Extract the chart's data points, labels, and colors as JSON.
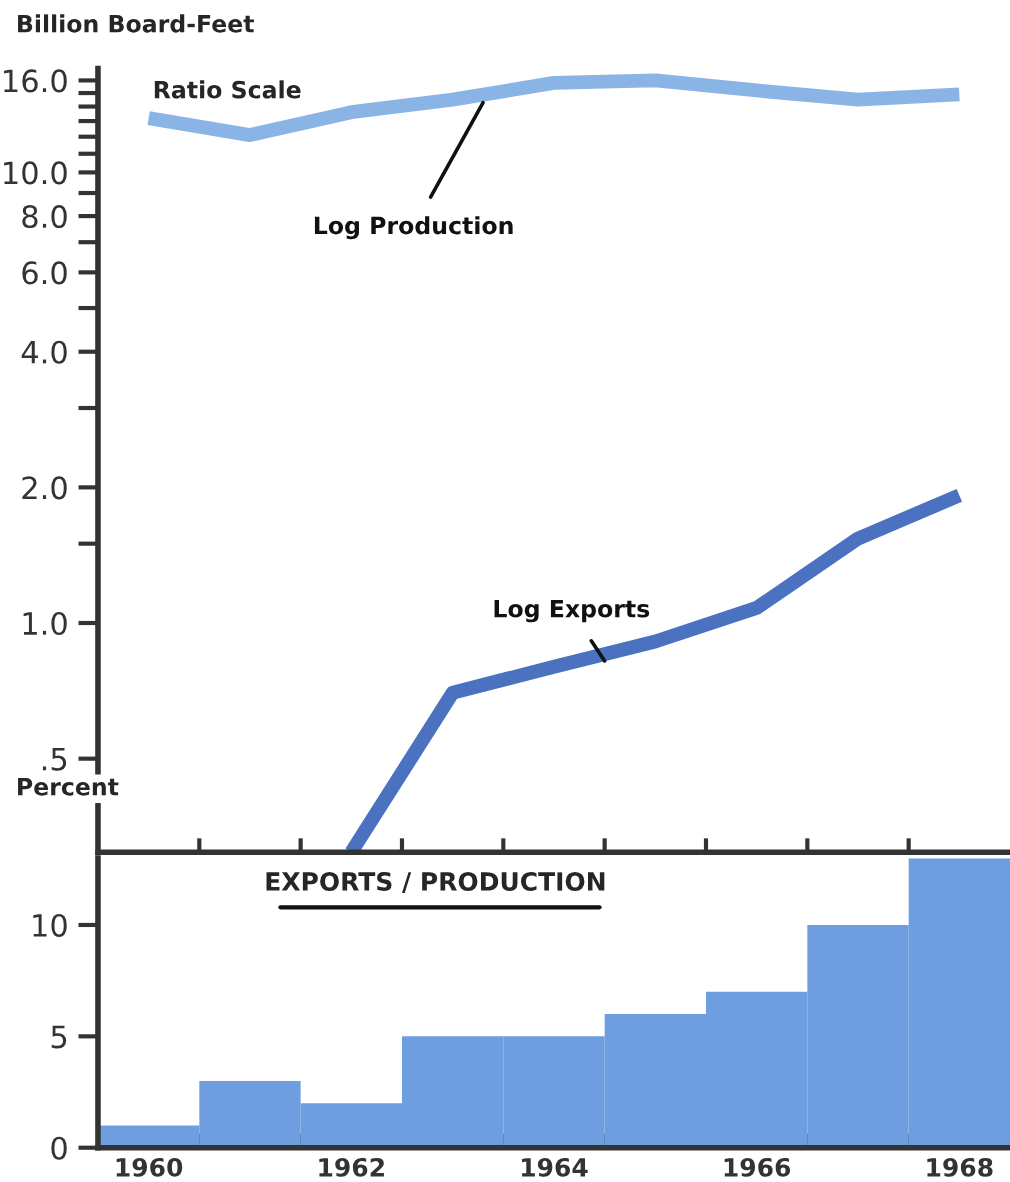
{
  "chart_data": [
    {
      "type": "line",
      "log": "y",
      "ylabel": "Billion Board-Feet",
      "annotations": [
        "Ratio Scale"
      ],
      "x": [
        1960,
        1961,
        1962,
        1963,
        1964,
        1965,
        1966,
        1967,
        1968
      ],
      "series": [
        {
          "name": "Log Production",
          "color": "#8ab4e6",
          "values": [
            13.2,
            12.1,
            13.6,
            14.5,
            15.8,
            16.0,
            15.2,
            14.5,
            14.9
          ]
        },
        {
          "name": "Log Exports",
          "color": "#4a72c0",
          "values": [
            null,
            null,
            0.31,
            0.7,
            0.8,
            0.91,
            1.08,
            1.54,
            1.92
          ]
        }
      ],
      "xlim": [
        1959.5,
        1968.5
      ],
      "xticks": [
        {
          "value": 1960.5,
          "label": null
        },
        {
          "value": 1961.5,
          "label": null
        },
        {
          "value": 1962.5,
          "label": null
        },
        {
          "value": 1963.5,
          "label": null
        },
        {
          "value": 1964.5,
          "label": null
        },
        {
          "value": 1965.5,
          "label": null
        },
        {
          "value": 1966.5,
          "label": null
        },
        {
          "value": 1967.5,
          "label": null
        }
      ],
      "ylim": [
        0.31,
        17
      ],
      "yticks": [
        {
          "value": 16,
          "label": "16.0"
        },
        {
          "value": 15,
          "label": null
        },
        {
          "value": 14,
          "label": null
        },
        {
          "value": 13,
          "label": null
        },
        {
          "value": 12,
          "label": null
        },
        {
          "value": 11,
          "label": null
        },
        {
          "value": 10,
          "label": "10.0"
        },
        {
          "value": 9,
          "label": null
        },
        {
          "value": 8,
          "label": "8.0"
        },
        {
          "value": 7,
          "label": null
        },
        {
          "value": 6,
          "label": "6.0"
        },
        {
          "value": 5,
          "label": null
        },
        {
          "value": 4,
          "label": "4.0"
        },
        {
          "value": 3,
          "label": null
        },
        {
          "value": 2,
          "label": "2.0"
        },
        {
          "value": 1.5,
          "label": null
        },
        {
          "value": 1,
          "label": "1.0"
        },
        {
          "value": 0.5,
          "label": ".5"
        }
      ],
      "tick_labels": "y",
      "grid": false,
      "legend": false,
      "marker": "none",
      "line_style": "solid"
    },
    {
      "type": "bar",
      "title": "EXPORTS / PRODUCTION",
      "ylabel": "Percent",
      "x": [
        1960,
        1961,
        1962,
        1963,
        1964,
        1965,
        1966,
        1967,
        1968
      ],
      "series": [
        {
          "color": "#6f9ee0",
          "values": [
            1,
            3,
            2,
            5,
            5,
            6,
            7,
            10,
            13
          ]
        }
      ],
      "xlim": [
        1959.5,
        1968.5
      ],
      "xticks": [
        {
          "value": 1960,
          "label": "1960"
        },
        {
          "value": 1960.5,
          "label": null
        },
        {
          "value": 1961.5,
          "label": null
        },
        {
          "value": 1962,
          "label": "1962"
        },
        {
          "value": 1962.5,
          "label": null
        },
        {
          "value": 1963.5,
          "label": null
        },
        {
          "value": 1964,
          "label": "1964"
        },
        {
          "value": 1964.5,
          "label": null
        },
        {
          "value": 1965.5,
          "label": null
        },
        {
          "value": 1966,
          "label": "1966"
        },
        {
          "value": 1966.5,
          "label": null
        },
        {
          "value": 1967.5,
          "label": null
        },
        {
          "value": 1968,
          "label": "1968"
        }
      ],
      "ylim": [
        0,
        13
      ],
      "yticks": [
        0,
        5,
        10
      ],
      "grid": false,
      "legend": false
    }
  ]
}
